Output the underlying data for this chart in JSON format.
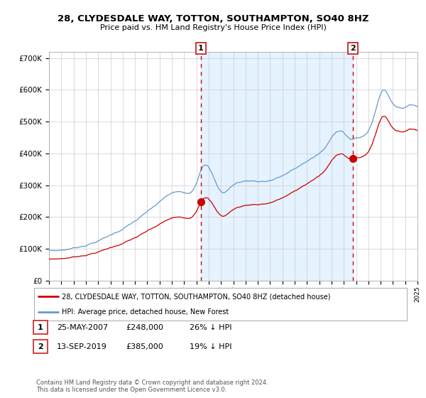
{
  "title": "28, CLYDESDALE WAY, TOTTON, SOUTHAMPTON, SO40 8HZ",
  "subtitle": "Price paid vs. HM Land Registry's House Price Index (HPI)",
  "legend_label_red": "28, CLYDESDALE WAY, TOTTON, SOUTHAMPTON, SO40 8HZ (detached house)",
  "legend_label_blue": "HPI: Average price, detached house, New Forest",
  "annotation1_label": "1",
  "annotation1_date": "25-MAY-2007",
  "annotation1_price": "£248,000",
  "annotation1_hpi": "26% ↓ HPI",
  "annotation2_label": "2",
  "annotation2_date": "13-SEP-2019",
  "annotation2_price": "£385,000",
  "annotation2_hpi": "19% ↓ HPI",
  "footer": "Contains HM Land Registry data © Crown copyright and database right 2024.\nThis data is licensed under the Open Government Licence v3.0.",
  "color_red": "#cc0000",
  "color_blue": "#6699cc",
  "color_fill": "#ddeeff",
  "color_annotation_line": "#cc0000",
  "bg_color": "#ffffff",
  "grid_color": "#cccccc",
  "ylim": [
    0,
    720000
  ],
  "yticks": [
    0,
    100000,
    200000,
    300000,
    400000,
    500000,
    600000,
    700000
  ],
  "sale1_year": 2007.4,
  "sale1_price": 248000,
  "sale2_year": 2019.7,
  "sale2_price": 385000,
  "start_year": 1995,
  "end_year": 2025
}
